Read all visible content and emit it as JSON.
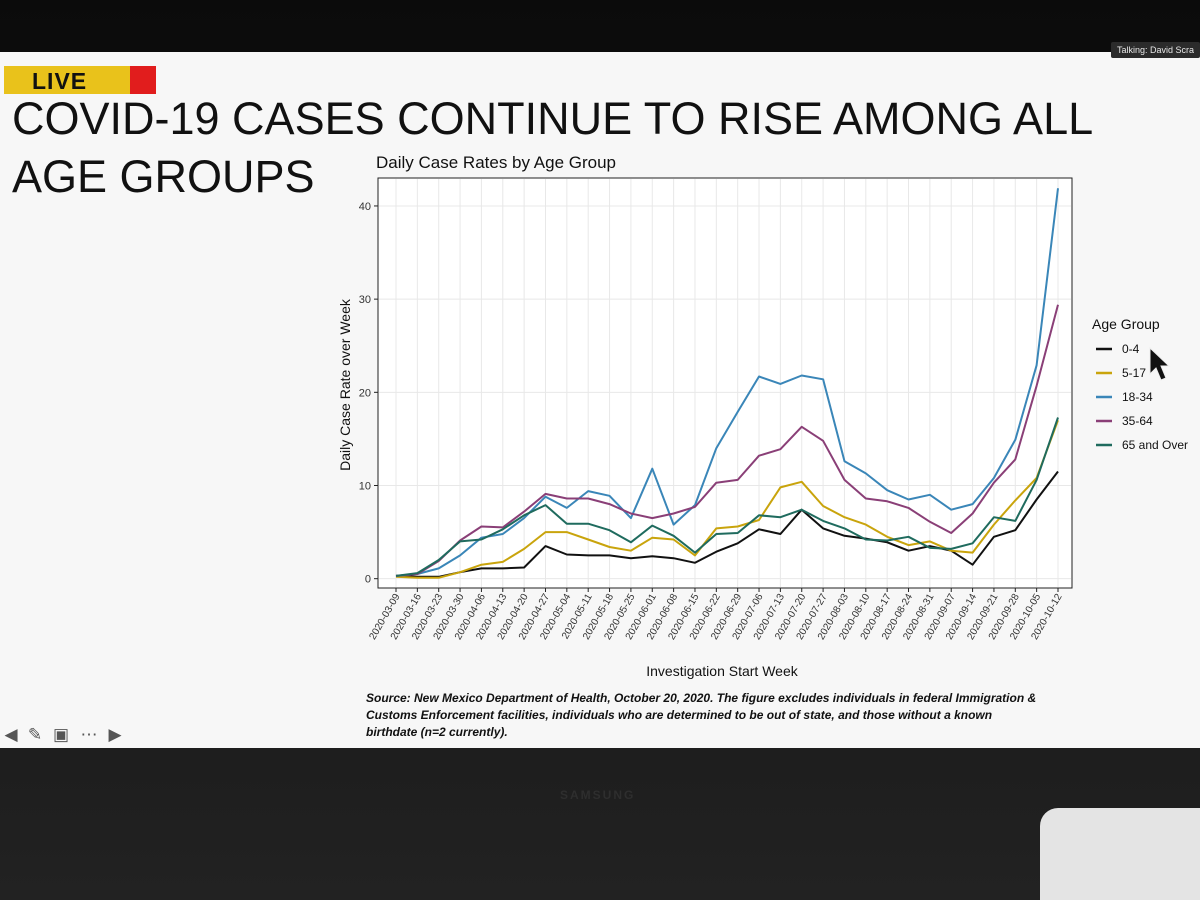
{
  "talking_label": "Talking: David Scra",
  "live_label": "LIVE",
  "slide_title": "COVID-19 CASES CONTINUE TO RISE AMONG ALL AGE GROUPS",
  "caption": "Source: New Mexico Department of Health, October 20, 2020. The figure excludes individuals in federal Immigration & Customs Enforcement facilities, individuals who are determined to be out of state, and those without a known birthdate (n=2 currently).",
  "bezel_brand": "SAMSUNG",
  "toolbar": {
    "icons": [
      "arrow-left-icon",
      "pen-icon",
      "slides-icon",
      "more-icon",
      "arrow-right-icon"
    ]
  },
  "chart_data": {
    "type": "line",
    "title": "Daily Case Rates by Age Group",
    "xlabel": "Investigation Start Week",
    "ylabel": "Daily Case Rate over Week",
    "ylim": [
      -1,
      43
    ],
    "yticks": [
      0,
      10,
      20,
      30,
      40
    ],
    "grid": true,
    "legend_title": "Age Group",
    "legend_position": "right",
    "x": [
      "2020-03-09",
      "2020-03-16",
      "2020-03-23",
      "2020-03-30",
      "2020-04-06",
      "2020-04-13",
      "2020-04-20",
      "2020-04-27",
      "2020-05-04",
      "2020-05-11",
      "2020-05-18",
      "2020-05-25",
      "2020-06-01",
      "2020-06-08",
      "2020-06-15",
      "2020-06-22",
      "2020-06-29",
      "2020-07-06",
      "2020-07-13",
      "2020-07-20",
      "2020-07-27",
      "2020-08-03",
      "2020-08-10",
      "2020-08-17",
      "2020-08-24",
      "2020-08-31",
      "2020-09-07",
      "2020-09-14",
      "2020-09-21",
      "2020-09-28",
      "2020-10-05",
      "2020-10-12"
    ],
    "series": [
      {
        "name": "0-4",
        "color": "#111111",
        "values": [
          0.3,
          0.2,
          0.2,
          0.7,
          1.1,
          1.1,
          1.2,
          3.5,
          2.6,
          2.5,
          2.5,
          2.2,
          2.4,
          2.2,
          1.7,
          2.9,
          3.8,
          5.3,
          4.8,
          7.4,
          5.4,
          4.6,
          4.3,
          3.9,
          3.0,
          3.5,
          3.0,
          1.5,
          4.5,
          5.2,
          8.5,
          11.5
        ]
      },
      {
        "name": "5-17",
        "color": "#c9a40c",
        "values": [
          0.2,
          0.1,
          0.1,
          0.7,
          1.5,
          1.8,
          3.2,
          5.0,
          5.0,
          4.2,
          3.4,
          3.0,
          4.4,
          4.2,
          2.5,
          5.4,
          5.6,
          6.3,
          9.8,
          10.4,
          7.8,
          6.6,
          5.8,
          4.5,
          3.6,
          4.0,
          3.0,
          2.8,
          5.8,
          8.4,
          10.8,
          17.0
        ]
      },
      {
        "name": "18-34",
        "color": "#3a86b8",
        "values": [
          0.3,
          0.5,
          1.1,
          2.5,
          4.4,
          4.8,
          6.5,
          8.8,
          7.6,
          9.4,
          8.9,
          6.5,
          11.8,
          5.8,
          7.9,
          14.0,
          17.9,
          21.7,
          20.9,
          21.8,
          21.4,
          12.6,
          11.3,
          9.5,
          8.5,
          9.0,
          7.4,
          8.0,
          10.8,
          14.9,
          22.9,
          41.9
        ]
      },
      {
        "name": "35-64",
        "color": "#8a3f77",
        "values": [
          0.3,
          0.5,
          1.9,
          4.1,
          5.6,
          5.5,
          7.2,
          9.1,
          8.6,
          8.6,
          8.0,
          7.0,
          6.5,
          7.0,
          7.7,
          10.3,
          10.6,
          13.2,
          13.9,
          16.3,
          14.8,
          10.6,
          8.6,
          8.3,
          7.6,
          6.1,
          4.9,
          7.0,
          10.3,
          12.8,
          20.7,
          29.4
        ]
      },
      {
        "name": "65 and Over",
        "color": "#1f6b5e",
        "values": [
          0.3,
          0.6,
          2.0,
          4.0,
          4.2,
          5.3,
          6.8,
          7.9,
          5.9,
          5.9,
          5.2,
          3.9,
          5.7,
          4.6,
          2.8,
          4.8,
          4.9,
          6.8,
          6.6,
          7.4,
          6.2,
          5.4,
          4.2,
          4.1,
          4.5,
          3.3,
          3.2,
          3.8,
          6.6,
          6.2,
          10.6,
          17.3
        ]
      }
    ]
  }
}
